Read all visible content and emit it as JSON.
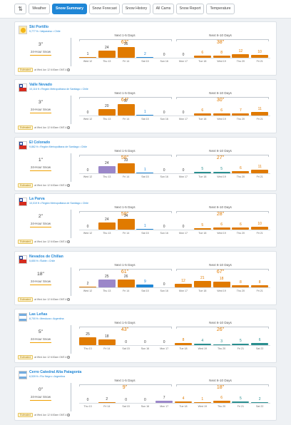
{
  "tabs": {
    "filter_icon": "filter-icon",
    "items": [
      {
        "label": "Weather",
        "active": false
      },
      {
        "label": "Snow Summary",
        "active": true
      },
      {
        "label": "Snow Forecast",
        "active": false
      },
      {
        "label": "Snow History",
        "active": false
      },
      {
        "label": "All Cams",
        "active": false
      },
      {
        "label": "Snow Report",
        "active": false
      },
      {
        "label": "Temperature",
        "active": false
      }
    ]
  },
  "labels": {
    "snow_24": "24-Hour Snow",
    "next_1_5": "Next 1-5 Days",
    "next_6_10": "Next 6-10 Days",
    "updated_badge": "Estimated"
  },
  "colors": {
    "orange": "#e07a00",
    "purple": "#9b87c9",
    "blue": "#1f86d6",
    "teal": "#2a8f8f"
  },
  "resorts": [
    {
      "name": "Ski Portillo",
      "location": "9,777 ft • Valparaíso • Chile",
      "flag": "sun",
      "snow24": "3\"",
      "updated": "at Wed Jun 12 6:00am GMT-4",
      "p1_total": "63\"",
      "p2_total": "38\"",
      "days": [
        {
          "d": "Wed 12",
          "v": "1",
          "n": 1,
          "c": "orange"
        },
        {
          "d": "Thu 13",
          "v": "24",
          "n": 24,
          "c": "orange"
        },
        {
          "d": "Fri 14",
          "v": "35",
          "n": 35,
          "c": "orange"
        },
        {
          "d": "Sat 15",
          "v": "2",
          "n": 2,
          "c": "blue"
        },
        {
          "d": "Sun 16",
          "v": "0",
          "n": 0,
          "c": "orange"
        },
        {
          "d": "Mon 17",
          "v": "0",
          "n": 0,
          "c": "orange"
        },
        {
          "d": "Tue 18",
          "v": "6",
          "n": 6,
          "c": "orange"
        },
        {
          "d": "Wed 19",
          "v": "8",
          "n": 8,
          "c": "orange"
        },
        {
          "d": "Thu 20",
          "v": "12",
          "n": 12,
          "c": "orange"
        },
        {
          "d": "Fri 21",
          "v": "10",
          "n": 10,
          "c": "orange"
        }
      ]
    },
    {
      "name": "Valle Nevado",
      "location": "10,116 ft • Región Metropolitana de Santiago • Chile",
      "flag": "cl",
      "snow24": "3\"",
      "updated": "at Wed Jun 12 6:00am GMT-4",
      "p1_total": "64\"",
      "p2_total": "30\"",
      "days": [
        {
          "d": "Wed 12",
          "v": "0",
          "n": 0,
          "c": "orange"
        },
        {
          "d": "Thu 13",
          "v": "20",
          "n": 20,
          "c": "orange"
        },
        {
          "d": "Fri 14",
          "v": "37",
          "n": 37,
          "c": "orange"
        },
        {
          "d": "Sat 15",
          "v": "1",
          "n": 1,
          "c": "blue"
        },
        {
          "d": "Sun 16",
          "v": "0",
          "n": 0,
          "c": "orange"
        },
        {
          "d": "Mon 17",
          "v": "0",
          "n": 0,
          "c": "orange"
        },
        {
          "d": "Tue 18",
          "v": "6",
          "n": 6,
          "c": "orange"
        },
        {
          "d": "Wed 19",
          "v": "6",
          "n": 6,
          "c": "orange"
        },
        {
          "d": "Thu 20",
          "v": "7",
          "n": 7,
          "c": "orange"
        },
        {
          "d": "Fri 21",
          "v": "11",
          "n": 11,
          "c": "orange"
        }
      ]
    },
    {
      "name": "El Colorado",
      "location": "9,862 ft • Región Metropolitana de Santiago • Chile",
      "flag": "cl",
      "snow24": "1\"",
      "updated": "at Wed Jun 12 6:00am GMT-4",
      "p1_total": "58\"",
      "p2_total": "27\"",
      "days": [
        {
          "d": "Wed 12",
          "v": "0",
          "n": 0,
          "c": "orange"
        },
        {
          "d": "Thu 13",
          "v": "24",
          "n": 24,
          "c": "purple"
        },
        {
          "d": "Fri 14",
          "v": "33",
          "n": 33,
          "c": "orange"
        },
        {
          "d": "Sat 15",
          "v": "1",
          "n": 1,
          "c": "blue"
        },
        {
          "d": "Sun 16",
          "v": "0",
          "n": 0,
          "c": "orange"
        },
        {
          "d": "Mon 17",
          "v": "0",
          "n": 0,
          "c": "orange"
        },
        {
          "d": "Tue 18",
          "v": "5",
          "n": 5,
          "c": "teal"
        },
        {
          "d": "Wed 19",
          "v": "5",
          "n": 5,
          "c": "teal"
        },
        {
          "d": "Thu 20",
          "v": "6",
          "n": 6,
          "c": "orange"
        },
        {
          "d": "Fri 21",
          "v": "11",
          "n": 11,
          "c": "orange"
        }
      ]
    },
    {
      "name": "La Parva",
      "location": "10,019 ft • Región Metropolitana de Santiago • Chile",
      "flag": "cl",
      "snow24": "2\"",
      "updated": "at Wed Jun 12 6:00am GMT-4",
      "p1_total": "59\"",
      "p2_total": "28\"",
      "days": [
        {
          "d": "Wed 12",
          "v": "0",
          "n": 0,
          "c": "orange"
        },
        {
          "d": "Thu 13",
          "v": "24",
          "n": 24,
          "c": "orange"
        },
        {
          "d": "Fri 14",
          "v": "34",
          "n": 34,
          "c": "orange"
        },
        {
          "d": "Sat 15",
          "v": "1",
          "n": 1,
          "c": "blue"
        },
        {
          "d": "Sun 16",
          "v": "0",
          "n": 0,
          "c": "orange"
        },
        {
          "d": "Mon 17",
          "v": "0",
          "n": 0,
          "c": "orange"
        },
        {
          "d": "Tue 18",
          "v": "5",
          "n": 5,
          "c": "orange"
        },
        {
          "d": "Wed 19",
          "v": "6",
          "n": 6,
          "c": "orange"
        },
        {
          "d": "Thu 20",
          "v": "6",
          "n": 6,
          "c": "orange"
        },
        {
          "d": "Fri 21",
          "v": "10",
          "n": 10,
          "c": "orange"
        }
      ]
    },
    {
      "name": "Nevados de Chillan",
      "location": "5,650 ft • Ñuble • Chile",
      "flag": "cl",
      "snow24": "18\"",
      "updated": "at Wed Jun 12 6:00am GMT-4",
      "p1_total": "61\"",
      "p2_total": "67\"",
      "days": [
        {
          "d": "Wed 12",
          "v": "2",
          "n": 2,
          "c": "orange"
        },
        {
          "d": "Thu 13",
          "v": "25",
          "n": 25,
          "c": "purple"
        },
        {
          "d": "Fri 14",
          "v": "26",
          "n": 26,
          "c": "orange"
        },
        {
          "d": "Sat 15",
          "v": "9",
          "n": 9,
          "c": "blue"
        },
        {
          "d": "Sun 16",
          "v": "0",
          "n": 0,
          "c": "orange"
        },
        {
          "d": "Mon 17",
          "v": "12",
          "n": 12,
          "c": "orange"
        },
        {
          "d": "Tue 18",
          "v": "21",
          "n": 21,
          "c": "orange"
        },
        {
          "d": "Wed 19",
          "v": "18",
          "n": 18,
          "c": "orange"
        },
        {
          "d": "Thu 20",
          "v": "8",
          "n": 8,
          "c": "orange"
        },
        {
          "d": "Fri 21",
          "v": "8",
          "n": 8,
          "c": "orange"
        }
      ]
    },
    {
      "name": "Las Leñas",
      "location": "8,700 ft • Mendoza • Argentina",
      "flag": "ar",
      "snow24": "5\"",
      "updated": "at Wed Jun 12 6:00am GMT-4",
      "p1_total": "43\"",
      "p2_total": "26\"",
      "days": [
        {
          "d": "Thu 13",
          "v": "25",
          "n": 25,
          "c": "orange"
        },
        {
          "d": "Fri 14",
          "v": "18",
          "n": 18,
          "c": "orange"
        },
        {
          "d": "Sat 15",
          "v": "0",
          "n": 0,
          "c": "orange"
        },
        {
          "d": "Sun 16",
          "v": "0",
          "n": 0,
          "c": "orange"
        },
        {
          "d": "Mon 17",
          "v": "0",
          "n": 0,
          "c": "orange"
        },
        {
          "d": "Tue 18",
          "v": "8",
          "n": 8,
          "c": "orange"
        },
        {
          "d": "Wed 19",
          "v": "4",
          "n": 4,
          "c": "teal"
        },
        {
          "d": "Thu 20",
          "v": "3",
          "n": 3,
          "c": "teal"
        },
        {
          "d": "Fri 21",
          "v": "5",
          "n": 5,
          "c": "teal"
        },
        {
          "d": "Sat 22",
          "v": "6",
          "n": 6,
          "c": "teal"
        }
      ]
    },
    {
      "name": "Cerro Catedral Alta Patagonia",
      "location": "6,539 ft • Río Negro • Argentina",
      "flag": "ar",
      "snow24": "0\"",
      "updated": "at Wed Jun 12 6:00am GMT-4",
      "p1_total": "9\"",
      "p2_total": "18\"",
      "days": [
        {
          "d": "Thu 13",
          "v": "0",
          "n": 0,
          "c": "orange"
        },
        {
          "d": "Fri 14",
          "v": "2",
          "n": 2,
          "c": "orange"
        },
        {
          "d": "Sat 15",
          "v": "0",
          "n": 0,
          "c": "orange"
        },
        {
          "d": "Sun 16",
          "v": "0",
          "n": 0,
          "c": "orange"
        },
        {
          "d": "Mon 17",
          "v": "7",
          "n": 7,
          "c": "purple"
        },
        {
          "d": "Tue 18",
          "v": "4",
          "n": 4,
          "c": "orange"
        },
        {
          "d": "Wed 19",
          "v": "1",
          "n": 1,
          "c": "orange"
        },
        {
          "d": "Thu 20",
          "v": "6",
          "n": 6,
          "c": "orange"
        },
        {
          "d": "Fri 21",
          "v": "5",
          "n": 5,
          "c": "teal"
        },
        {
          "d": "Sat 22",
          "v": "2",
          "n": 2,
          "c": "teal"
        }
      ]
    }
  ]
}
